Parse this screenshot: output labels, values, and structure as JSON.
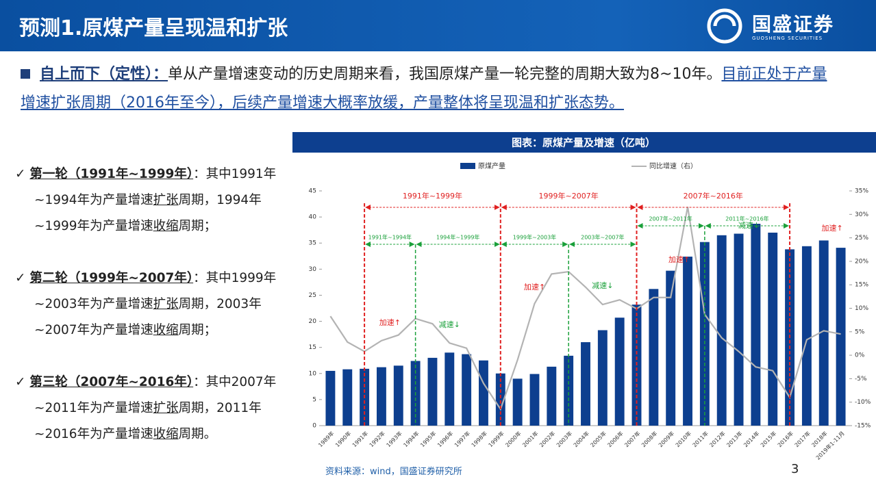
{
  "header": {
    "title": "预测1.原煤产量呈现温和扩张",
    "logo": "国盛证券",
    "logo_sub": "GUOSHENG SECURITIES"
  },
  "bullet": {
    "lead": "自上而下（定性）：",
    "text": "单从产量增速变动的历史周期来看，我国原煤产量一轮完整的周期大致为8~10年。",
    "emphasis": "目前正处于产量增速扩张周期（2016年至今），后续产量增速大概率放缓，产量整体将呈现温和扩张态势。"
  },
  "items": [
    {
      "segments": [
        "第一轮（1991年~1999年）",
        "：其中1991年~1994年为产量增速",
        "扩张",
        "周期，1994年~1999年为产量增速",
        "收缩",
        "周期；"
      ]
    },
    {
      "segments": [
        "第二轮（1999年~2007年）",
        "：其中1999年~2003年为产量增速",
        "扩张",
        "周期，2003年~2007年为产量增速",
        "收缩",
        "周期；"
      ]
    },
    {
      "segments": [
        "第三轮（2007年~2016年）",
        "：其中2007年~2011年为产量增速",
        "扩张",
        "周期，2011年~2016年为产量增速",
        "收缩",
        "周期。"
      ]
    }
  ],
  "chart_data": {
    "type": "bar-line",
    "title": "图表：原煤产量及增速（亿吨）",
    "categories": [
      "1989年",
      "1990年",
      "1991年",
      "1992年",
      "1993年",
      "1994年",
      "1995年",
      "1996年",
      "1997年",
      "1998年",
      "1999年",
      "2000年",
      "2001年",
      "2002年",
      "2003年",
      "2004年",
      "2005年",
      "2006年",
      "2007年",
      "2008年",
      "2009年",
      "2010年",
      "2011年",
      "2012年",
      "2013年",
      "2014年",
      "2015年",
      "2016年",
      "2017年",
      "2018年",
      "2019年1-11月"
    ],
    "series": [
      {
        "name": "原煤产量",
        "color": "#0d3f8f",
        "values": [
          10.5,
          10.8,
          10.9,
          11.2,
          11.5,
          12.4,
          13.0,
          14.0,
          13.7,
          12.5,
          10.0,
          9.0,
          9.9,
          11.3,
          13.4,
          16.0,
          18.3,
          20.7,
          23.2,
          26.2,
          29.7,
          32.4,
          35.2,
          36.5,
          36.8,
          38.7,
          37.0,
          33.8,
          34.4,
          35.5,
          34.1
        ]
      },
      {
        "name": "同比增速（右）",
        "color": "#b3b3b3",
        "axis": "y2",
        "values": [
          8.3,
          2.8,
          0.8,
          3.1,
          4.3,
          7.8,
          6.7,
          2.6,
          1.5,
          -6,
          -11.5,
          -1.0,
          11.0,
          17.3,
          17.8,
          14.5,
          10.8,
          11.8,
          9.9,
          12.3,
          12.3,
          31.6,
          8.7,
          3.7,
          0.8,
          -2.5,
          -3.3,
          -9.0,
          3.3,
          5.2,
          4.5
        ]
      }
    ],
    "ylim": [
      0,
      45
    ],
    "yticks": [
      0,
      5,
      10,
      15,
      20,
      25,
      30,
      35,
      40,
      45
    ],
    "y2lim": [
      -15,
      35
    ],
    "y2ticks": [
      {
        "value": -15,
        "label": "-15%"
      },
      {
        "value": -10,
        "label": "-10%"
      },
      {
        "value": -5,
        "label": "-5%"
      },
      {
        "value": 0,
        "label": "0%"
      },
      {
        "value": 5,
        "label": "5%"
      },
      {
        "value": 10,
        "label": "10%"
      },
      {
        "value": 15,
        "label": "15%"
      },
      {
        "value": 20,
        "label": "20%"
      },
      {
        "value": 25,
        "label": "25%"
      },
      {
        "value": 30,
        "label": "30%"
      },
      {
        "value": 35,
        "label": "35%"
      }
    ],
    "cycles": [
      "1991年~1999年",
      "1999年~2007年",
      "2007年~2016年"
    ],
    "phases": [
      "1991年~1994年",
      "1994年~1999年",
      "1999年~2003年",
      "2003年~2007年",
      "2007年~2011年",
      "2011年~2016年"
    ],
    "notes": [
      "加速↑",
      "减速↓",
      "加速↑",
      "减速↓",
      "加速↑",
      "减速↓",
      "加速↑"
    ]
  },
  "source": "资料来源：wind，国盛证券研究所",
  "page": "3"
}
